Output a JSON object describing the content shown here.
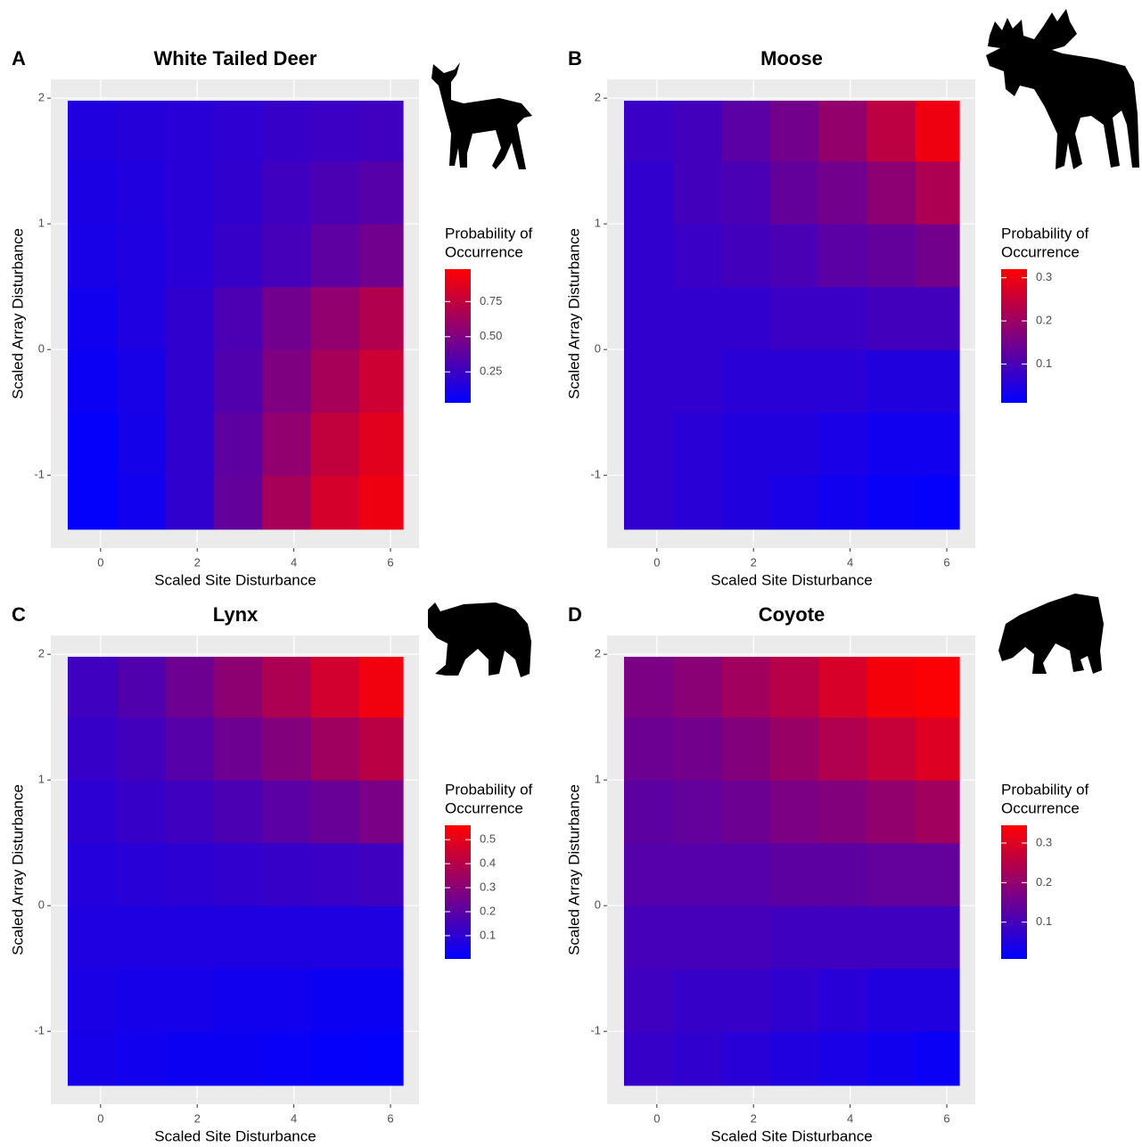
{
  "chart_data": [
    {
      "type": "heatmap",
      "panel_label": "A",
      "title": "White Tailed Deer",
      "x_label": "Scaled Site Disturbance",
      "y_label": "Scaled Array Disturbance",
      "xlim": [
        -1.03,
        6.59
      ],
      "ylim": [
        -1.58,
        2.15
      ],
      "xticks": [
        0,
        2,
        4,
        6
      ],
      "yticks": [
        -1,
        0,
        1,
        2
      ],
      "grid": true,
      "x_bins": [
        -0.68,
        0.35,
        1.35,
        2.35,
        3.35,
        4.35,
        5.35,
        6.26
      ],
      "y_bins": [
        -1.43,
        -1,
        -0.5,
        0,
        0.5,
        1,
        1.5,
        1.98
      ],
      "values": [
        [
          0.04,
          0.09,
          0.21,
          0.4,
          0.65,
          0.82,
          0.92
        ],
        [
          0.05,
          0.11,
          0.21,
          0.38,
          0.57,
          0.75,
          0.87
        ],
        [
          0.07,
          0.12,
          0.21,
          0.33,
          0.5,
          0.65,
          0.79
        ],
        [
          0.09,
          0.14,
          0.21,
          0.31,
          0.45,
          0.57,
          0.69
        ],
        [
          0.12,
          0.14,
          0.18,
          0.23,
          0.29,
          0.38,
          0.45
        ],
        [
          0.13,
          0.15,
          0.18,
          0.21,
          0.27,
          0.31,
          0.35
        ],
        [
          0.15,
          0.17,
          0.18,
          0.2,
          0.23,
          0.25,
          0.27
        ]
      ],
      "legend_title": [
        "Probability of",
        "Occurrence"
      ],
      "clim": [
        0.03,
        0.98
      ],
      "cticks": [
        0.25,
        {
          "value": 0.5,
          "label": "0.50"
        },
        0.75
      ],
      "colors": [
        "#0000ff",
        "#ff0000"
      ]
    },
    {
      "type": "heatmap",
      "panel_label": "B",
      "title": "Moose",
      "x_label": "Scaled Site Disturbance",
      "y_label": "Scaled Array Disturbance",
      "xlim": [
        -1.03,
        6.59
      ],
      "ylim": [
        -1.58,
        2.15
      ],
      "xticks": [
        0,
        2,
        4,
        6
      ],
      "yticks": [
        -1,
        0,
        1,
        2
      ],
      "grid": true,
      "x_bins": [
        -0.68,
        0.35,
        1.35,
        2.35,
        3.35,
        4.35,
        5.35,
        6.26
      ],
      "y_bins": [
        -1.43,
        -1,
        -0.5,
        0,
        0.5,
        1,
        1.5,
        1.98
      ],
      "values": [
        [
          0.07,
          0.06,
          0.05,
          0.04,
          0.03,
          0.02,
          0.015
        ],
        [
          0.07,
          0.06,
          0.05,
          0.05,
          0.04,
          0.03,
          0.03
        ],
        [
          0.07,
          0.07,
          0.06,
          0.06,
          0.06,
          0.05,
          0.05
        ],
        [
          0.07,
          0.07,
          0.07,
          0.08,
          0.08,
          0.09,
          0.09
        ],
        [
          0.07,
          0.08,
          0.09,
          0.1,
          0.12,
          0.13,
          0.15
        ],
        [
          0.07,
          0.09,
          0.1,
          0.13,
          0.15,
          0.18,
          0.22
        ],
        [
          0.08,
          0.09,
          0.12,
          0.15,
          0.19,
          0.24,
          0.3
        ]
      ],
      "legend_title": [
        "Probability of",
        "Occurrence"
      ],
      "clim": [
        0.01,
        0.32
      ],
      "cticks": [
        0.1,
        0.2,
        0.3
      ],
      "colors": [
        "#0000ff",
        "#ff0000"
      ]
    },
    {
      "type": "heatmap",
      "panel_label": "C",
      "title": "Lynx",
      "x_label": "Scaled Site Disturbance",
      "y_label": "Scaled Array Disturbance",
      "xlim": [
        -1.03,
        6.59
      ],
      "ylim": [
        -1.58,
        2.15
      ],
      "xticks": [
        0,
        2,
        4,
        6
      ],
      "yticks": [
        -1,
        0,
        1,
        2
      ],
      "grid": true,
      "x_bins": [
        -0.68,
        0.35,
        1.35,
        2.35,
        3.35,
        4.35,
        5.35,
        6.26
      ],
      "y_bins": [
        -1.43,
        -1,
        -0.5,
        0,
        0.5,
        1,
        1.5,
        1.98
      ],
      "values": [
        [
          0.05,
          0.04,
          0.03,
          0.03,
          0.02,
          0.015,
          0.01
        ],
        [
          0.06,
          0.05,
          0.05,
          0.04,
          0.04,
          0.03,
          0.03
        ],
        [
          0.07,
          0.07,
          0.07,
          0.07,
          0.07,
          0.07,
          0.07
        ],
        [
          0.08,
          0.09,
          0.1,
          0.11,
          0.12,
          0.13,
          0.14
        ],
        [
          0.1,
          0.12,
          0.14,
          0.17,
          0.2,
          0.23,
          0.27
        ],
        [
          0.12,
          0.15,
          0.19,
          0.24,
          0.29,
          0.35,
          0.41
        ],
        [
          0.14,
          0.18,
          0.24,
          0.31,
          0.38,
          0.46,
          0.53
        ]
      ],
      "legend_title": [
        "Probability of",
        "Occurrence"
      ],
      "clim": [
        0.003,
        0.56
      ],
      "cticks": [
        0.1,
        0.2,
        0.3,
        0.4,
        0.5
      ],
      "colors": [
        "#0000ff",
        "#ff0000"
      ]
    },
    {
      "type": "heatmap",
      "panel_label": "D",
      "title": "Coyote",
      "x_label": "Scaled Site Disturbance",
      "y_label": "Scaled Array Disturbance",
      "xlim": [
        -1.03,
        6.59
      ],
      "ylim": [
        -1.58,
        2.15
      ],
      "xticks": [
        0,
        2,
        4,
        6
      ],
      "yticks": [
        -1,
        0,
        1,
        2
      ],
      "grid": true,
      "x_bins": [
        -0.68,
        0.35,
        1.35,
        2.35,
        3.35,
        4.35,
        5.35,
        6.26
      ],
      "y_bins": [
        -1.43,
        -1,
        -0.5,
        0,
        0.5,
        1,
        1.5,
        1.98
      ],
      "values": [
        [
          0.08,
          0.07,
          0.06,
          0.05,
          0.04,
          0.03,
          0.02
        ],
        [
          0.09,
          0.08,
          0.08,
          0.07,
          0.06,
          0.05,
          0.05
        ],
        [
          0.1,
          0.1,
          0.1,
          0.09,
          0.09,
          0.09,
          0.09
        ],
        [
          0.12,
          0.12,
          0.12,
          0.13,
          0.13,
          0.14,
          0.14
        ],
        [
          0.13,
          0.14,
          0.15,
          0.17,
          0.18,
          0.2,
          0.22
        ],
        [
          0.15,
          0.16,
          0.18,
          0.21,
          0.24,
          0.27,
          0.3
        ],
        [
          0.17,
          0.19,
          0.22,
          0.25,
          0.29,
          0.33,
          0.34
        ]
      ],
      "legend_title": [
        "Probability of",
        "Occurrence"
      ],
      "clim": [
        0.007,
        0.345
      ],
      "cticks": [
        0.1,
        0.2,
        0.3
      ],
      "colors": [
        "#0000ff",
        "#ff0000"
      ]
    }
  ]
}
